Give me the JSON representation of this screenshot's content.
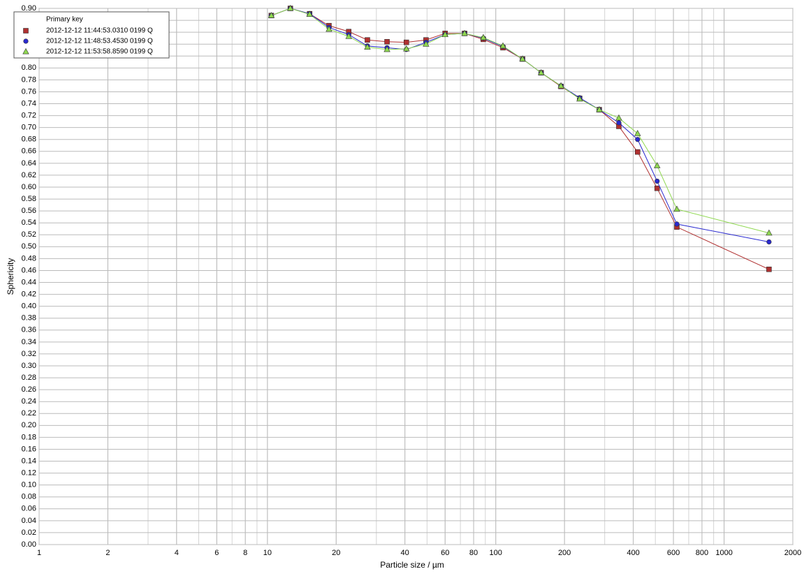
{
  "chart_data": {
    "type": "line",
    "x_label": "Particle size / µm",
    "y_label": "Sphericity",
    "legend_title": "Primary key",
    "legend_position": "upper left",
    "x_log": true,
    "grid": true,
    "xlim": [
      1,
      2000
    ],
    "xticks": [
      1,
      2,
      4,
      6,
      8,
      10,
      20,
      40,
      60,
      80,
      100,
      200,
      400,
      600,
      800,
      1000,
      2000
    ],
    "ylim": [
      0,
      0.9
    ],
    "yticks": [
      {
        "value": 0,
        "label": "0.00"
      },
      0.02,
      0.04,
      0.06,
      0.08,
      {
        "value": 0.1,
        "label": "0.10"
      },
      0.12,
      0.14,
      0.16,
      0.18,
      {
        "value": 0.2,
        "label": "0.20"
      },
      0.22,
      0.24,
      0.26,
      0.28,
      {
        "value": 0.3,
        "label": "0.30"
      },
      0.32,
      0.34,
      0.36,
      0.38,
      {
        "value": 0.4,
        "label": "0.40"
      },
      0.42,
      0.44,
      0.46,
      0.48,
      {
        "value": 0.5,
        "label": "0.50"
      },
      0.52,
      0.54,
      0.56,
      0.58,
      {
        "value": 0.6,
        "label": "0.60"
      },
      0.62,
      0.64,
      0.66,
      0.68,
      {
        "value": 0.7,
        "label": "0.70"
      },
      0.72,
      0.74,
      0.76,
      0.78,
      {
        "value": 0.8,
        "label": "0.80"
      },
      0.82,
      0.84,
      0.86,
      0.88,
      {
        "value": 0.9,
        "label": "0.90"
      }
    ],
    "x": [
      10.4,
      12.6,
      15.3,
      18.6,
      22.7,
      27.4,
      33.4,
      40.6,
      49.5,
      60,
      73,
      88.2,
      107.5,
      131,
      158,
      193,
      233,
      284,
      346,
      418,
      509,
      621,
      1573
    ],
    "series": [
      {
        "name": "2012-12-12 11:44:53.0310 0199 Q",
        "color": "#b03030",
        "marker": "square",
        "values": [
          0.888,
          0.9,
          0.891,
          0.871,
          0.861,
          0.847,
          0.844,
          0.843,
          0.847,
          0.858,
          0.858,
          0.848,
          0.834,
          0.815,
          0.792,
          0.769,
          0.749,
          0.73,
          0.702,
          0.659,
          0.598,
          0.533,
          0.462
        ]
      },
      {
        "name": "2012-12-12 11:48:53.4530 0199 Q",
        "color": "#2a2ad0",
        "marker": "circle",
        "values": [
          0.888,
          0.9,
          0.891,
          0.868,
          0.856,
          0.837,
          0.834,
          0.831,
          0.843,
          0.856,
          0.858,
          0.85,
          0.836,
          0.815,
          0.792,
          0.77,
          0.75,
          0.73,
          0.708,
          0.68,
          0.61,
          0.538,
          0.508
        ]
      },
      {
        "name": "2012-12-12 11:53:58.8590 0199 Q",
        "color": "#8fd850",
        "marker": "triangle",
        "values": [
          0.888,
          0.9,
          0.89,
          0.865,
          0.853,
          0.835,
          0.831,
          0.832,
          0.84,
          0.856,
          0.858,
          0.851,
          0.837,
          0.815,
          0.792,
          0.77,
          0.748,
          0.73,
          0.716,
          0.69,
          0.636,
          0.563,
          0.523
        ]
      }
    ]
  }
}
